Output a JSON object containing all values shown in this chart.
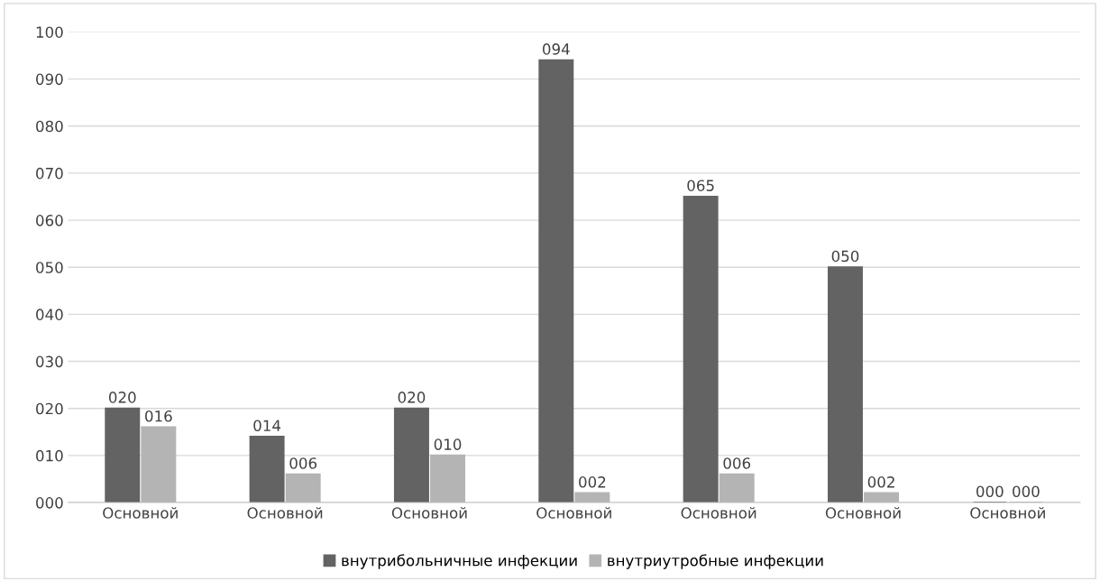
{
  "chart_data": {
    "type": "bar",
    "categories": [
      "Основной",
      "Основной",
      "Основной",
      "Основной",
      "Основной",
      "Основной",
      "Основной"
    ],
    "series": [
      {
        "name": "внутрибольничные инфекции",
        "color": "#636363",
        "values": [
          20,
          14,
          20,
          94,
          65,
          50,
          0
        ],
        "value_labels": [
          "020",
          "014",
          "020",
          "094",
          "065",
          "050",
          "000"
        ]
      },
      {
        "name": "внутриутробные инфекции",
        "color": "#b4b4b4",
        "values": [
          16,
          6,
          10,
          2,
          6,
          2,
          0
        ],
        "value_labels": [
          "016",
          "006",
          "010",
          "002",
          "006",
          "002",
          "000"
        ]
      }
    ],
    "ylim": [
      0,
      100
    ],
    "yticks": [
      {
        "value": 0,
        "label": "000"
      },
      {
        "value": 10,
        "label": "010"
      },
      {
        "value": 20,
        "label": "020"
      },
      {
        "value": 30,
        "label": "030"
      },
      {
        "value": 40,
        "label": "040"
      },
      {
        "value": 50,
        "label": "050"
      },
      {
        "value": 60,
        "label": "060"
      },
      {
        "value": 70,
        "label": "070"
      },
      {
        "value": 80,
        "label": "080"
      },
      {
        "value": 90,
        "label": "090"
      },
      {
        "value": 100,
        "label": "100"
      }
    ],
    "grid": "y",
    "legend": "bottom"
  }
}
